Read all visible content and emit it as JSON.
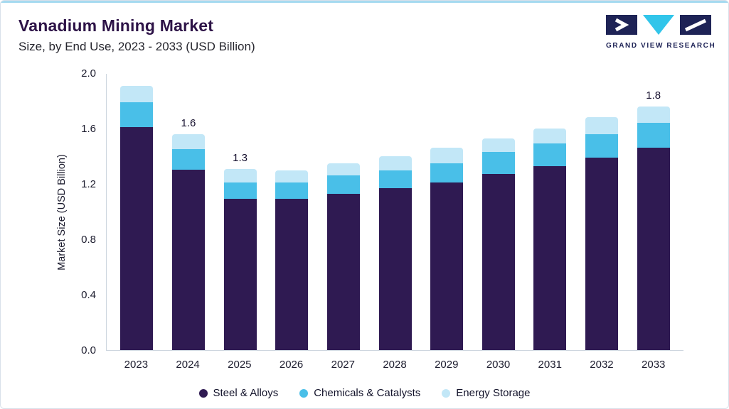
{
  "header": {
    "title": "Vanadium Mining Market",
    "subtitle": "Size, by End Use, 2023 - 2033 (USD Billion)",
    "logo_text": "GRAND VIEW RESEARCH"
  },
  "colors": {
    "accent_top_bar": "#a5daf0",
    "title": "#2d1347",
    "axis_line": "#ccd5de",
    "logo_navy": "#1e2356",
    "logo_cyan": "#31c5ea"
  },
  "chart_data": {
    "type": "bar",
    "stacked": true,
    "title": "Vanadium Mining Market Size, by End Use, 2023 - 2033 (USD Billion)",
    "xlabel": "",
    "ylabel": "Market Size (USD Billion)",
    "ylim": [
      0,
      2.0
    ],
    "yticks": [
      0.0,
      0.4,
      0.8,
      1.2,
      1.6,
      2.0
    ],
    "grid": false,
    "legend_position": "bottom",
    "categories": [
      "2023",
      "2024",
      "2025",
      "2026",
      "2027",
      "2028",
      "2029",
      "2030",
      "2031",
      "2032",
      "2033"
    ],
    "series": [
      {
        "name": "Steel & Alloys",
        "color": "#2f1a52",
        "values": [
          1.61,
          1.3,
          1.09,
          1.09,
          1.13,
          1.17,
          1.21,
          1.27,
          1.33,
          1.39,
          1.46
        ]
      },
      {
        "name": "Chemicals & Catalysts",
        "color": "#49bfe8",
        "values": [
          0.18,
          0.15,
          0.12,
          0.12,
          0.13,
          0.13,
          0.14,
          0.16,
          0.16,
          0.17,
          0.18
        ]
      },
      {
        "name": "Energy Storage",
        "color": "#c2e7f7",
        "values": [
          0.12,
          0.11,
          0.1,
          0.09,
          0.09,
          0.1,
          0.11,
          0.1,
          0.11,
          0.12,
          0.12
        ]
      }
    ],
    "bar_labels": {
      "2024": "1.6",
      "2025": "1.3",
      "2033": "1.8"
    }
  }
}
